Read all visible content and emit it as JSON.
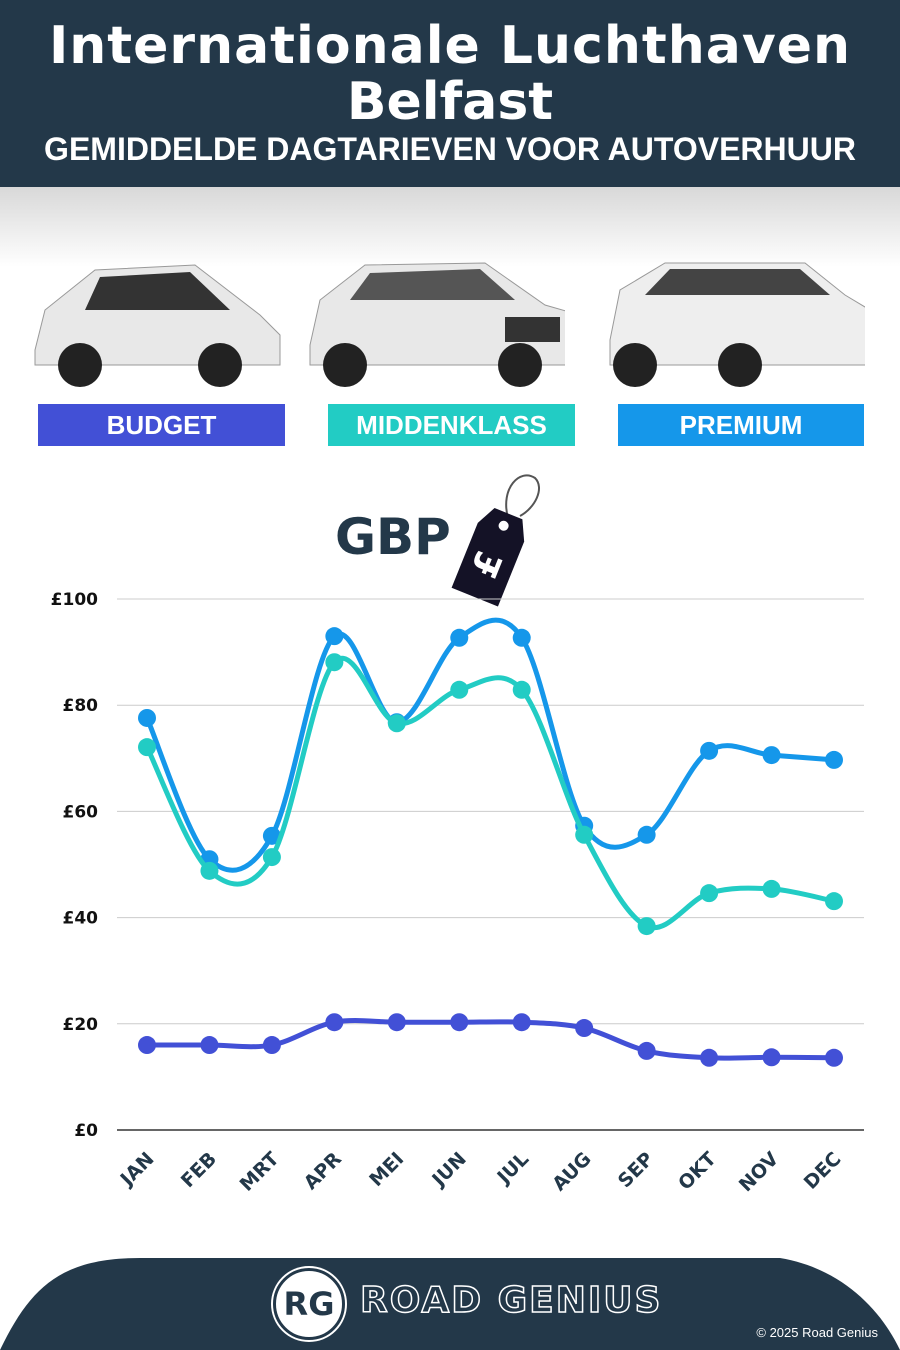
{
  "header": {
    "title_line1": "Internationale Luchthaven",
    "title_line2": "Belfast",
    "subtitle": "GEMIDDELDE DAGTARIEVEN VOOR AUTOVERHUUR"
  },
  "categories": [
    {
      "label": "BUDGET",
      "color": "#4250d6"
    },
    {
      "label": "MIDDENKLASS",
      "color": "#22ccc4"
    },
    {
      "label": "PREMIUM",
      "color": "#1597ea"
    }
  ],
  "currency": {
    "label": "GBP",
    "tag_symbol": "£"
  },
  "chart_data": {
    "type": "line",
    "title": "GBP",
    "categories": [
      "JAN",
      "FEB",
      "MRT",
      "APR",
      "MEI",
      "JUN",
      "JUL",
      "AUG",
      "SEP",
      "OKT",
      "NOV",
      "DEC"
    ],
    "ylim": [
      0,
      100
    ],
    "yticks": [
      0,
      20,
      40,
      60,
      80,
      100
    ],
    "ytick_labels": [
      "£0",
      "£20",
      "£40",
      "£60",
      "£80",
      "£100"
    ],
    "grid": true,
    "series": [
      {
        "name": "PREMIUM",
        "color": "#1597ea",
        "values": [
          77.6,
          51,
          55.4,
          93,
          76.8,
          92.7,
          92.7,
          57.3,
          55.6,
          71.4,
          70.6,
          69.7
        ]
      },
      {
        "name": "MIDDENKLASS",
        "color": "#22ccc4",
        "values": [
          72.1,
          48.8,
          51.4,
          88.1,
          76.6,
          82.9,
          82.9,
          55.6,
          38.4,
          44.6,
          45.4,
          43.1
        ]
      },
      {
        "name": "BUDGET",
        "color": "#4250d6",
        "values": [
          16,
          16,
          16,
          20.3,
          20.3,
          20.3,
          20.3,
          19.2,
          14.9,
          13.6,
          13.7,
          13.6
        ]
      }
    ]
  },
  "footer": {
    "logo": "RG",
    "brand": "ROAD GENIUS",
    "copyright": "© 2025 Road Genius"
  }
}
